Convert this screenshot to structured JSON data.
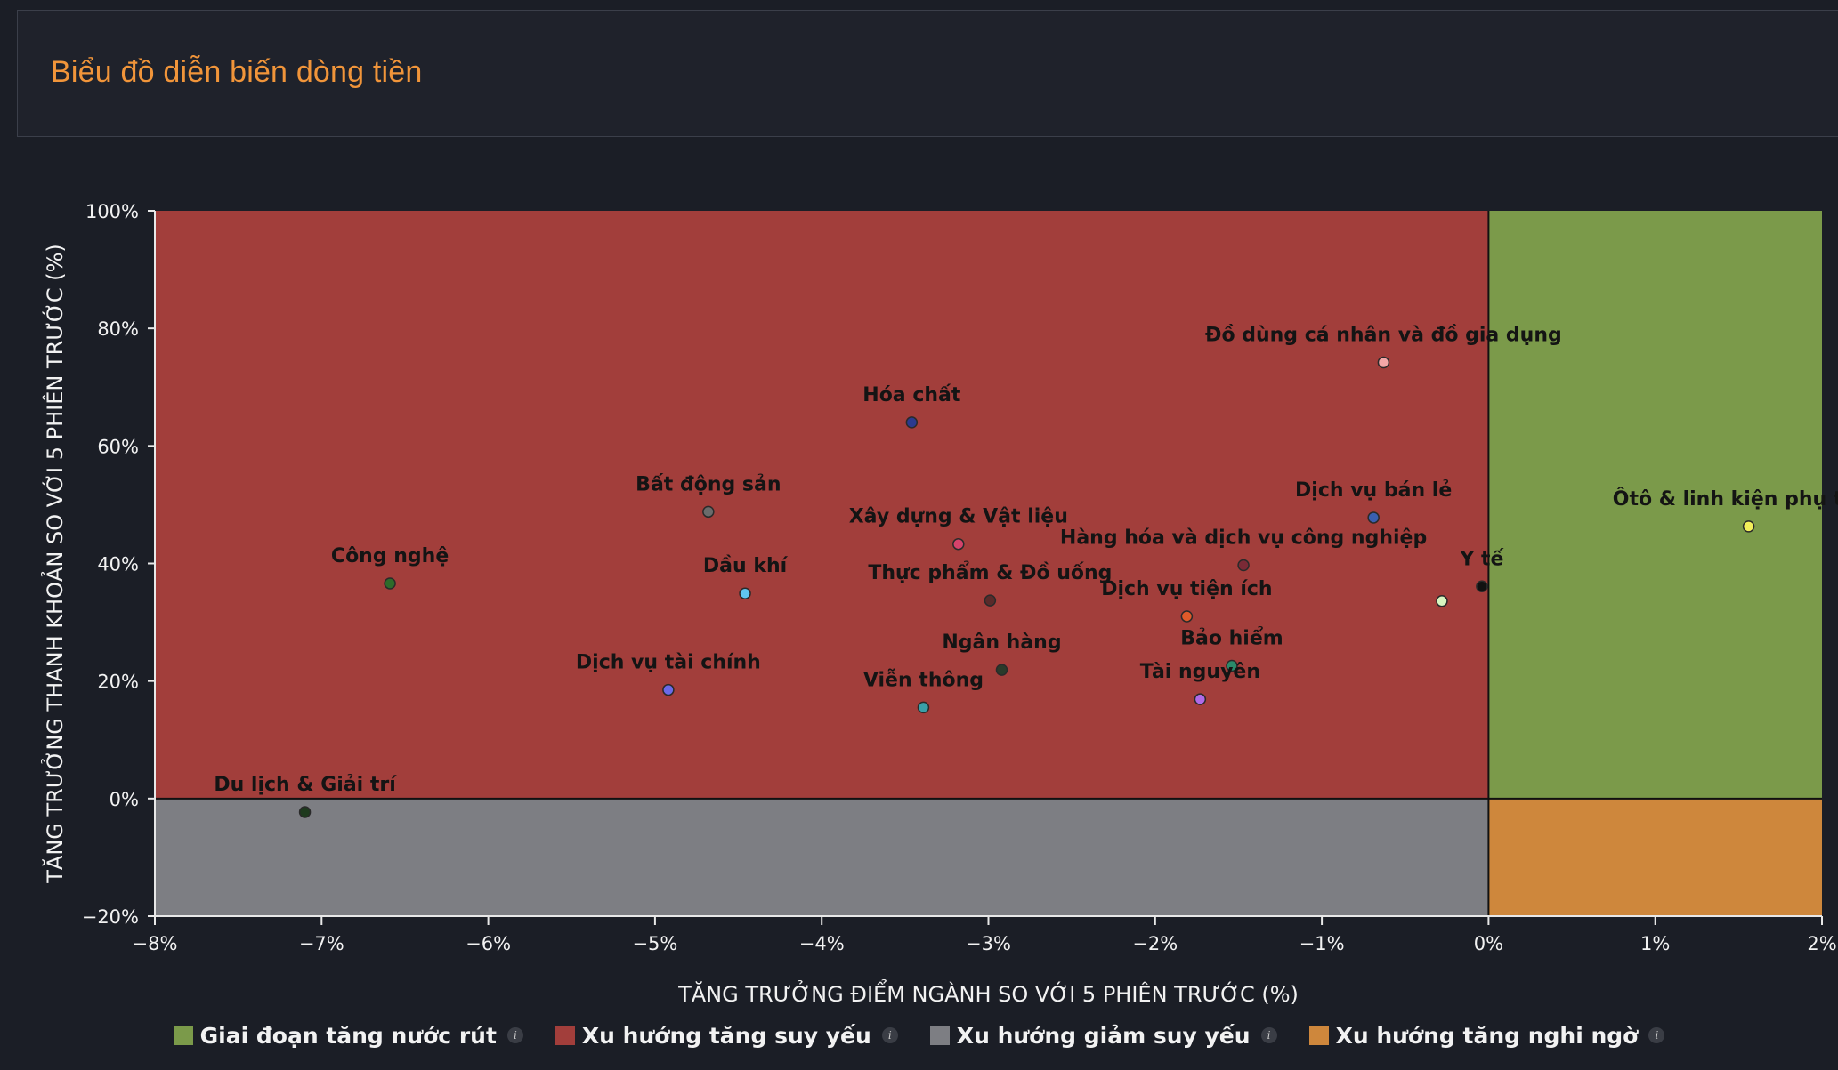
{
  "title": "Biểu đồ diễn biến dòng tiền",
  "chart_data": {
    "type": "scatter",
    "xlabel": "TĂNG TRƯỞNG ĐIỂM NGÀNH SO VỚI 5 PHIÊN TRƯỚC (%)",
    "ylabel": "TĂNG TRƯỞNG THANH KHOẢN SO VỚI 5 PHIÊN TRƯỚC (%)",
    "xlim": [
      -8,
      2
    ],
    "ylim": [
      -20,
      100
    ],
    "x_ticks": [
      -8,
      -7,
      -6,
      -5,
      -4,
      -3,
      -2,
      -1,
      0,
      1,
      2
    ],
    "x_tick_labels": [
      "−8%",
      "−7%",
      "−6%",
      "−5%",
      "−4%",
      "−3%",
      "−2%",
      "−1%",
      "0%",
      "1%",
      "2%"
    ],
    "y_ticks": [
      -20,
      0,
      20,
      40,
      60,
      80,
      100
    ],
    "y_tick_labels": [
      "−20%",
      "0%",
      "20%",
      "40%",
      "60%",
      "80%",
      "100%"
    ],
    "quadrants": [
      {
        "name": "Giai đoạn tăng nước rút",
        "color": "#7b9a4a",
        "x": [
          0,
          2
        ],
        "y": [
          0,
          100
        ]
      },
      {
        "name": "Xu hướng tăng suy yếu",
        "color": "#a23e3b",
        "x": [
          -8,
          0
        ],
        "y": [
          0,
          100
        ]
      },
      {
        "name": "Xu hướng giảm suy yếu",
        "color": "#7d7e83",
        "x": [
          -8,
          0
        ],
        "y": [
          -20,
          0
        ]
      },
      {
        "name": "Xu hướng tăng nghi ngờ",
        "color": "#ce873c",
        "x": [
          0,
          2
        ],
        "y": [
          -20,
          0
        ]
      }
    ],
    "points": [
      {
        "label": "Đồ dùng cá nhân và đồ gia dụng",
        "x": -0.63,
        "y": 74.2,
        "color": "#f4a7a7"
      },
      {
        "label": "Hóa chất",
        "x": -3.46,
        "y": 64.0,
        "color": "#2b3a8f"
      },
      {
        "label": "Bất động sản",
        "x": -4.68,
        "y": 48.8,
        "color": "#6b6b6b"
      },
      {
        "label": "Dịch vụ bán lẻ",
        "x": -0.69,
        "y": 47.8,
        "color": "#3a5fb0"
      },
      {
        "label": "Ôtô & linh kiện phụ tùng",
        "x": 1.56,
        "y": 46.3,
        "color": "#f2ef5a"
      },
      {
        "label": "Xây dựng & Vật liệu",
        "x": -3.18,
        "y": 43.3,
        "color": "#d6426b"
      },
      {
        "label": "Hàng hóa và dịch vụ công nghiệp",
        "x": -1.47,
        "y": 39.7,
        "color": "#7a2a36"
      },
      {
        "label": "Công nghệ",
        "x": -6.59,
        "y": 36.6,
        "color": "#2e6b2a"
      },
      {
        "label": "Y tế",
        "x": -0.04,
        "y": 36.1,
        "color": "#111111"
      },
      {
        "label": "Dầu khí",
        "x": -4.46,
        "y": 34.9,
        "color": "#5fc6f0"
      },
      {
        "label": "Thực phẩm & Đồ uống",
        "x": -2.99,
        "y": 33.7,
        "color": "#5a2a2a"
      },
      {
        "label": "",
        "x": -0.28,
        "y": 33.6,
        "color": "#d7f5c0"
      },
      {
        "label": "Dịch vụ tiện ích",
        "x": -1.81,
        "y": 31.0,
        "color": "#e05a2a"
      },
      {
        "label": "Bảo hiểm",
        "x": -1.54,
        "y": 22.6,
        "color": "#2a8a6a"
      },
      {
        "label": "Ngân hàng",
        "x": -2.92,
        "y": 21.9,
        "color": "#2a3a2a"
      },
      {
        "label": "Dịch vụ tài chính",
        "x": -4.92,
        "y": 18.5,
        "color": "#6a6ae8"
      },
      {
        "label": "Tài nguyên",
        "x": -1.73,
        "y": 16.9,
        "color": "#b06ae8"
      },
      {
        "label": "Viễn thông",
        "x": -3.39,
        "y": 15.5,
        "color": "#3aa0a8"
      },
      {
        "label": "Du lịch & Giải trí",
        "x": -7.1,
        "y": -2.3,
        "color": "#1e3a1e"
      }
    ]
  },
  "legend": [
    {
      "label": "Giai đoạn tăng nước rút",
      "color": "#7b9a4a",
      "info": "i"
    },
    {
      "label": "Xu hướng tăng suy yếu",
      "color": "#a23e3b",
      "info": "i"
    },
    {
      "label": "Xu hướng giảm suy yếu",
      "color": "#7d7e83",
      "info": "i"
    },
    {
      "label": "Xu hướng tăng nghi ngờ",
      "color": "#ce873c",
      "info": "i"
    }
  ]
}
